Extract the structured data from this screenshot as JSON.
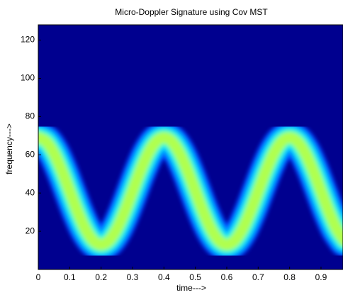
{
  "chart_data": {
    "type": "spectrogram",
    "title": "Micro-Doppler Signature using Cov MST",
    "x_label": "time--->",
    "y_label": "frequency--->",
    "x": [
      0,
      0.025,
      0.05,
      0.075,
      0.1,
      0.125,
      0.15,
      0.175,
      0.2,
      0.225,
      0.25,
      0.275,
      0.3,
      0.325,
      0.35,
      0.375,
      0.4,
      0.425,
      0.45,
      0.475,
      0.5,
      0.525,
      0.55,
      0.575,
      0.6,
      0.625,
      0.65,
      0.675,
      0.7,
      0.725,
      0.75,
      0.775,
      0.8,
      0.825,
      0.85,
      0.875,
      0.9,
      0.925,
      0.95,
      0.975
    ],
    "values": [
      69,
      66.9,
      60.8,
      51.7,
      41,
      30.3,
      21.2,
      15.1,
      13,
      15.1,
      21.2,
      30.3,
      41,
      51.7,
      60.8,
      66.9,
      69,
      66.9,
      60.8,
      51.7,
      41,
      30.3,
      21.2,
      15.1,
      13,
      15.1,
      21.2,
      30.3,
      41,
      51.7,
      60.8,
      66.9,
      69,
      66.9,
      60.8,
      51.7,
      41,
      30.3,
      21.2,
      15.1
    ],
    "background": "#00008f",
    "colors": [
      "#0040ff",
      "#0090ff",
      "#00d8ff",
      "#40ffc0",
      "#b0ff50"
    ],
    "xlim": [
      0,
      0.97
    ],
    "ylim": [
      0,
      128
    ],
    "xticks": [
      0,
      0.1,
      0.2,
      0.3,
      0.4,
      0.5,
      0.6,
      0.7,
      0.8,
      0.9
    ],
    "yticks": [
      20,
      40,
      60,
      80,
      100,
      120
    ]
  }
}
